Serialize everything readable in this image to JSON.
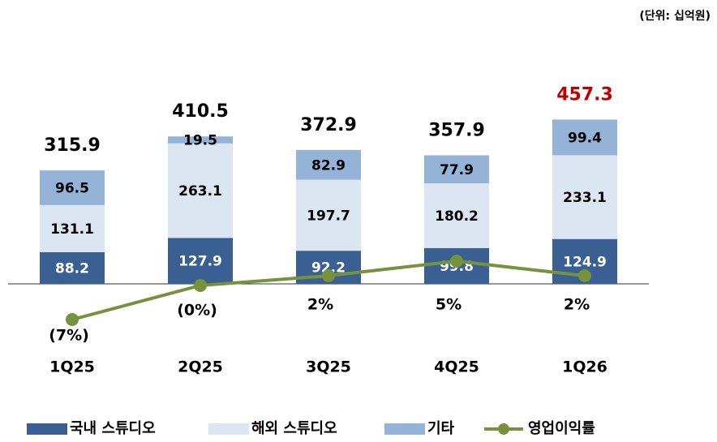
{
  "chart_data": {
    "type": "bar",
    "unit_label": "(단위: 십억원)",
    "categories": [
      "1Q25",
      "2Q25",
      "3Q25",
      "4Q25",
      "1Q26"
    ],
    "stacked": true,
    "series": [
      {
        "name": "국내 스튜디오",
        "color": "#3a5f93",
        "label_color": "#ffffff",
        "values": [
          88.2,
          127.9,
          92.2,
          99.8,
          124.9
        ]
      },
      {
        "name": "해외 스튜디오",
        "color": "#dce6f2",
        "label_color": "#000000",
        "values": [
          131.1,
          263.1,
          197.7,
          180.2,
          233.1
        ]
      },
      {
        "name": "기타",
        "color": "#95b3d7",
        "label_color": "#000000",
        "values": [
          96.5,
          19.5,
          82.9,
          77.9,
          99.4
        ]
      },
      {
        "name": "영업이익률",
        "type": "line",
        "axis": "y2",
        "color": "#76923c",
        "values": [
          -7,
          0,
          2,
          5,
          2
        ],
        "value_labels": [
          "(7%)",
          "(0%)",
          "2%",
          "5%",
          "2%"
        ]
      }
    ],
    "totals": [
      315.9,
      410.5,
      372.9,
      357.9,
      457.3
    ],
    "total_color": "#000000",
    "highlight": {
      "index": 4,
      "color": "#c00000"
    },
    "ylim": [
      0,
      700
    ],
    "y2lim": [
      -10,
      52
    ]
  }
}
